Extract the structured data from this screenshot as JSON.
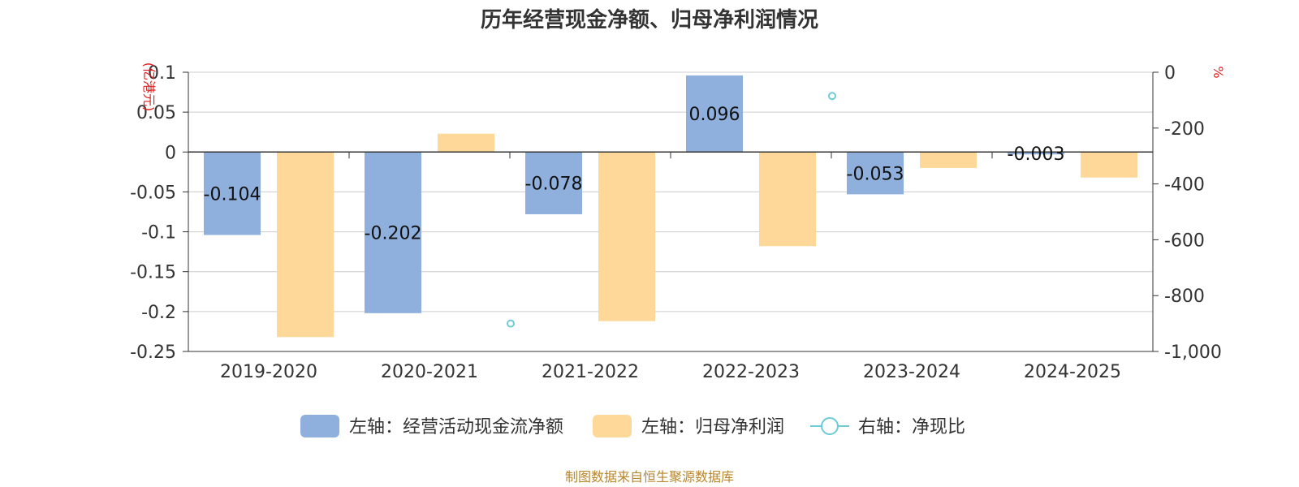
{
  "chart_data": {
    "type": "bar",
    "title": "历年经营现金净额、归母净利润情况",
    "categories": [
      "2019-2020",
      "2020-2021",
      "2021-2022",
      "2022-2023",
      "2023-2024",
      "2024-2025"
    ],
    "left_axis": {
      "unit": "(亿港元)",
      "ylim": [
        -0.25,
        0.1
      ],
      "ticks": [
        0.1,
        0.05,
        0,
        -0.05,
        -0.1,
        -0.15,
        -0.2,
        -0.25
      ],
      "tick_labels": [
        "0.1",
        "0.05",
        "0",
        "-0.05",
        "-0.1",
        "-0.15",
        "-0.2",
        "-0.25"
      ]
    },
    "right_axis": {
      "unit": "%",
      "ylim": [
        -1000,
        0
      ],
      "ticks": [
        0,
        -200,
        -400,
        -600,
        -800,
        -1000
      ],
      "tick_labels": [
        "0",
        "-200",
        "-400",
        "-600",
        "-800",
        "-1,000"
      ]
    },
    "series": [
      {
        "name": "左轴：经营活动现金流净额",
        "axis": "left",
        "type": "bar",
        "color": "#8fafdc",
        "values": [
          -0.104,
          -0.202,
          -0.078,
          0.096,
          -0.053,
          -0.003
        ],
        "labels": [
          "-0.104",
          "-0.202",
          "-0.078",
          "0.096",
          "-0.053",
          "-0.003"
        ]
      },
      {
        "name": "左轴：归母净利润",
        "axis": "left",
        "type": "bar",
        "color": "#fdd898",
        "values": [
          -0.232,
          0.023,
          -0.212,
          -0.118,
          -0.02,
          -0.032
        ]
      },
      {
        "name": "右轴：净现比",
        "axis": "right",
        "type": "scatter",
        "color": "#6ccbd6",
        "values": [
          null,
          -900,
          null,
          -85,
          null,
          null
        ]
      }
    ],
    "legend_position": "bottom",
    "grid": true
  },
  "source": "制图数据来自恒生聚源数据库"
}
